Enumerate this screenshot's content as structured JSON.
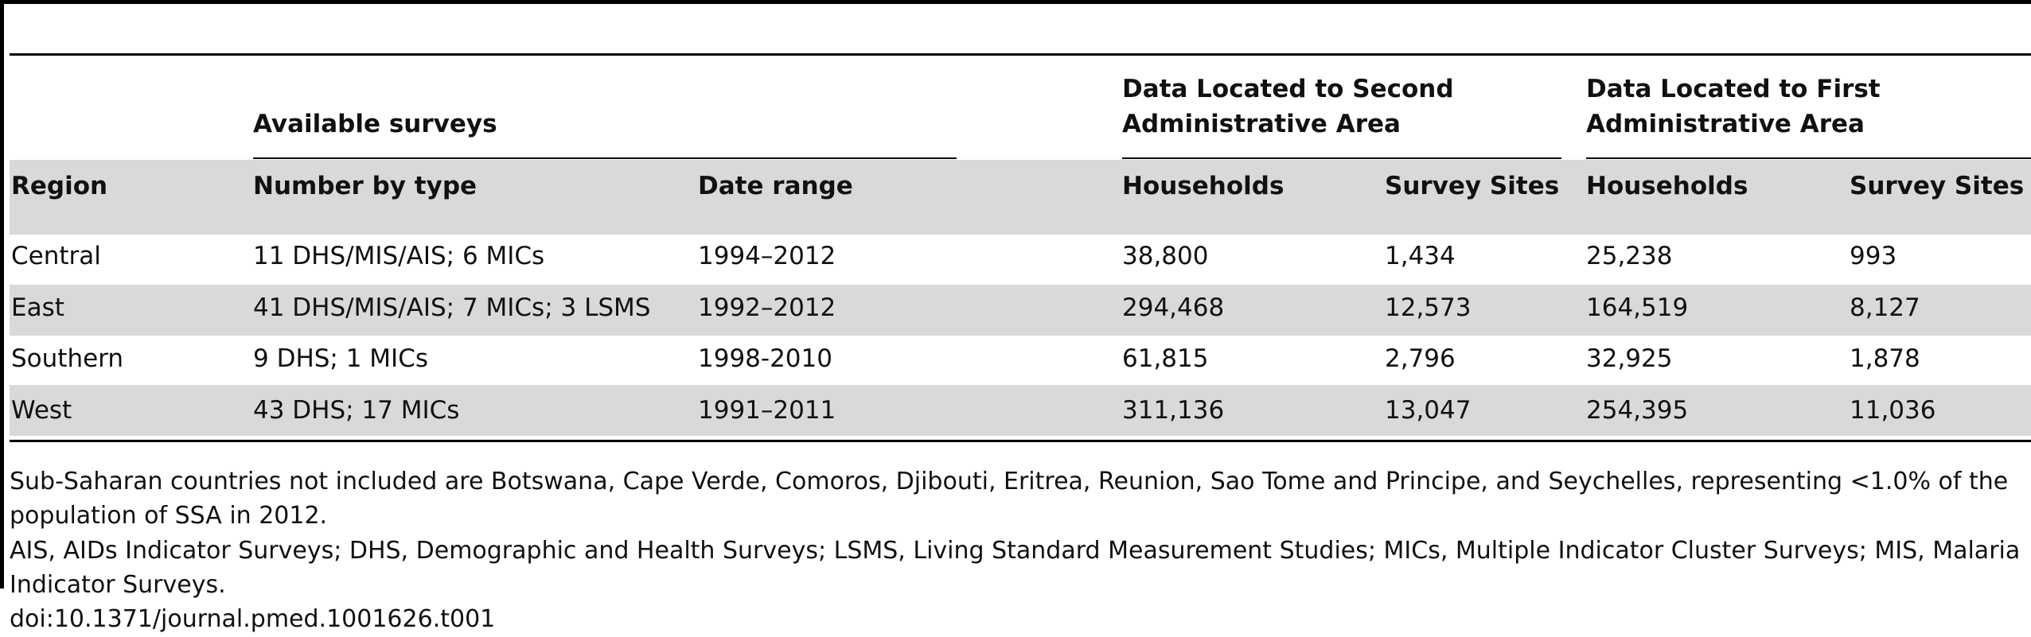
{
  "table": {
    "group_headers": {
      "available_surveys": "Available surveys",
      "second_admin_line1": "Data Located to Second",
      "second_admin_line2": "Administrative Area",
      "first_admin_line1": "Data Located to First",
      "first_admin_line2": "Administrative Area"
    },
    "columns": [
      "Region",
      "Number by type",
      "Date range",
      "Households",
      "Survey Sites",
      "Households",
      "Survey Sites"
    ],
    "rows": [
      [
        "Central",
        "11 DHS/MIS/AIS; 6 MICs",
        "1994–2012",
        "38,800",
        "1,434",
        "25,238",
        "993"
      ],
      [
        "East",
        "41 DHS/MIS/AIS; 7 MICs; 3 LSMS",
        "1992–2012",
        "294,468",
        "12,573",
        "164,519",
        "8,127"
      ],
      [
        "Southern",
        "9 DHS; 1 MICs",
        "1998-2010",
        "61,815",
        "2,796",
        "32,925",
        "1,878"
      ],
      [
        "West",
        "43 DHS; 17 MICs",
        "1991–2011",
        "311,136",
        "13,047",
        "254,395",
        "11,036"
      ]
    ]
  },
  "footnotes": {
    "line1": "Sub-Saharan countries not included are Botswana, Cape Verde, Comoros, Djibouti, Eritrea, Reunion, Sao Tome and Principe, and Seychelles, representing <1.0% of the",
    "line2": "population of SSA in 2012.",
    "line3": "AIS, AIDs Indicator Surveys; DHS, Demographic and Health Surveys; LSMS, Living Standard Measurement Studies; MICs, Multiple Indicator Cluster Surveys; MIS, Malaria",
    "line4": "Indicator Surveys.",
    "doi": "doi:10.1371/journal.pmed.1001626.t001"
  }
}
